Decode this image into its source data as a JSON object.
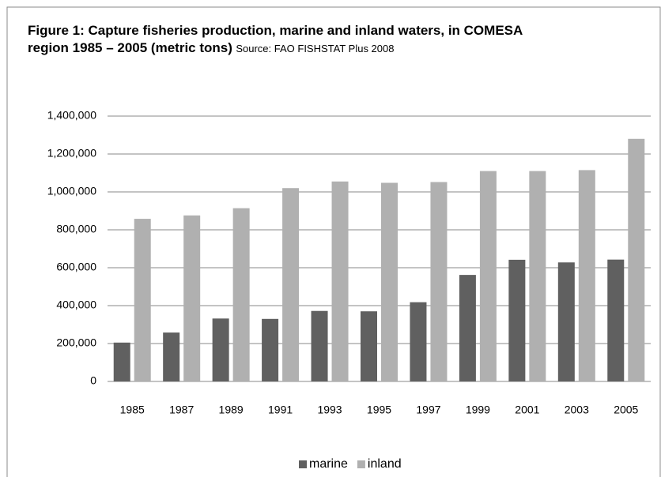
{
  "chart_data": {
    "type": "bar",
    "title": "Figure 1: Capture fisheries production, marine and inland waters, in COMESA region 1985 – 2005 (metric tons)",
    "subtitle": "Source: FAO FISHSTAT Plus 2008",
    "categories": [
      "1985",
      "1987",
      "1989",
      "1991",
      "1993",
      "1995",
      "1997",
      "1999",
      "2001",
      "2003",
      "2005"
    ],
    "series": [
      {
        "name": "marine",
        "color": "#606060",
        "values": [
          205000,
          258000,
          332000,
          330000,
          372000,
          370000,
          418000,
          562000,
          642000,
          628000,
          643000
        ]
      },
      {
        "name": "inland",
        "color": "#b0b0b0",
        "values": [
          858000,
          876000,
          914000,
          1020000,
          1055000,
          1048000,
          1052000,
          1110000,
          1110000,
          1115000,
          1280000
        ]
      }
    ],
    "ylim": [
      0,
      1400000
    ],
    "yticks": [
      0,
      {
        "value": 200000,
        "label": "200,000"
      },
      {
        "value": 400000,
        "label": "400,000"
      },
      {
        "value": 600000,
        "label": "600,000"
      },
      {
        "value": 800000,
        "label": "800,000"
      },
      {
        "value": 1000000,
        "label": "1,000,000"
      },
      {
        "value": 1200000,
        "label": "1,200,000"
      },
      {
        "value": 1400000,
        "label": "1,400,000"
      }
    ],
    "grid": true,
    "legend": "bottom"
  }
}
